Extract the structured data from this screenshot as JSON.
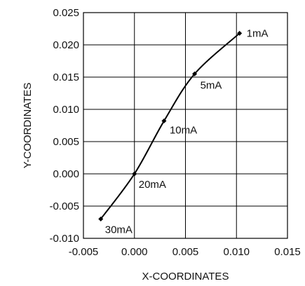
{
  "chart_data": {
    "type": "line",
    "title": "",
    "xlabel": "X-COORDINATES",
    "ylabel": "Y-COORDINATES",
    "xlim": [
      -0.005,
      0.015
    ],
    "ylim": [
      -0.01,
      0.025
    ],
    "x_ticks": [
      -0.005,
      0.0,
      0.005,
      0.01,
      0.015
    ],
    "y_ticks": [
      -0.01,
      -0.005,
      0.0,
      0.005,
      0.01,
      0.015,
      0.02,
      0.025
    ],
    "x_tick_labels": [
      "-0.005",
      "0.000",
      "0.005",
      "0.010",
      "0.015"
    ],
    "y_tick_labels": [
      "-0.010",
      "-0.005",
      "0.000",
      "0.005",
      "0.010",
      "0.015",
      "0.020",
      "0.025"
    ],
    "grid": true,
    "legend": "none",
    "line_color": "#000000",
    "series": [
      {
        "points": [
          {
            "x": -0.0033,
            "y": -0.007,
            "label": "30mA"
          },
          {
            "x": 0.0,
            "y": 0.0,
            "label": "20mA"
          },
          {
            "x": 0.0029,
            "y": 0.0082,
            "label": "10mA"
          },
          {
            "x": 0.0059,
            "y": 0.0155,
            "label": "5mA"
          },
          {
            "x": 0.0103,
            "y": 0.0218,
            "label": "1mA"
          }
        ]
      }
    ]
  }
}
